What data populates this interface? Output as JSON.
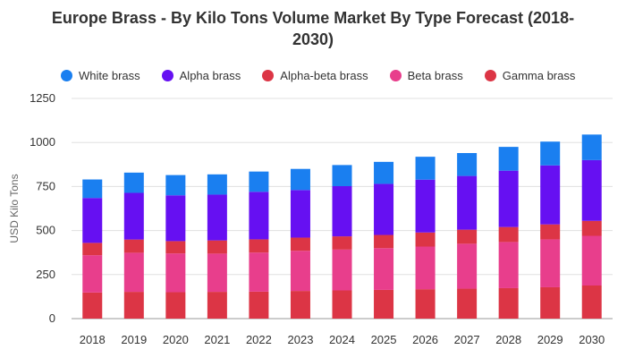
{
  "chart_data": {
    "type": "bar",
    "stacked": true,
    "title": [
      "Europe Brass - By Kilo Tons Volume Market By Type Forecast (2018-",
      "2030)"
    ],
    "ylabel": "USD Kilo Tons",
    "xlabel": "",
    "ylim": [
      0,
      1250
    ],
    "yticks": [
      0,
      250,
      500,
      750,
      1000,
      1250
    ],
    "grid": true,
    "legend_position": "top-left",
    "categories": [
      "2018",
      "2019",
      "2020",
      "2021",
      "2022",
      "2023",
      "2024",
      "2025",
      "2026",
      "2027",
      "2028",
      "2029",
      "2030"
    ],
    "legend": [
      {
        "name": "White brass",
        "color": "#1a7ff0"
      },
      {
        "name": "Alpha brass",
        "color": "#6610f2"
      },
      {
        "name": "Alpha-beta brass",
        "color": "#dc3545"
      },
      {
        "name": "Beta brass",
        "color": "#e83e8c"
      },
      {
        "name": "Gamma brass",
        "color": "#dc3545"
      }
    ],
    "series": [
      {
        "name": "Gamma brass",
        "color": "#dc3545",
        "values": [
          148,
          152,
          150,
          152,
          153,
          157,
          160,
          163,
          167,
          170,
          173,
          178,
          188
        ]
      },
      {
        "name": "Beta brass",
        "color": "#e83e8c",
        "values": [
          212,
          222,
          220,
          217,
          222,
          228,
          232,
          237,
          242,
          255,
          262,
          272,
          282
        ]
      },
      {
        "name": "Alpha-beta brass",
        "color": "#dc3545",
        "values": [
          70,
          75,
          70,
          75,
          75,
          75,
          75,
          75,
          80,
          80,
          85,
          85,
          85
        ]
      },
      {
        "name": "Alpha brass",
        "color": "#6610f2",
        "values": [
          255,
          265,
          260,
          260,
          270,
          270,
          285,
          290,
          300,
          305,
          320,
          335,
          345
        ]
      },
      {
        "name": "White brass",
        "color": "#1a7ff0",
        "values": [
          105,
          115,
          115,
          115,
          115,
          120,
          120,
          125,
          130,
          130,
          135,
          135,
          145
        ]
      }
    ]
  }
}
